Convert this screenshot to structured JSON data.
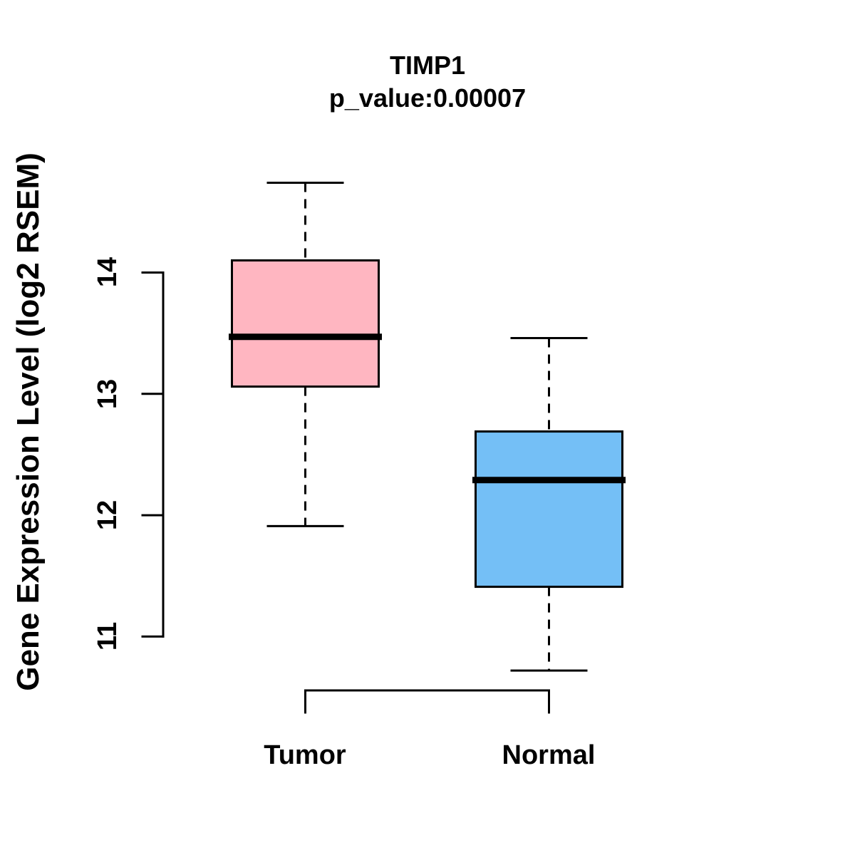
{
  "chart_data": {
    "type": "boxplot",
    "title": "TIMP1",
    "subtitle": "p_value:0.00007",
    "p_value": "0.00007",
    "ylabel": "Gene Expression Level (log2 RSEM)",
    "categories": [
      "Tumor",
      "Normal"
    ],
    "yticks": [
      11,
      12,
      13,
      14
    ],
    "ylim": [
      10.5,
      14.9
    ],
    "grid": false,
    "legend": "none",
    "series": [
      {
        "name": "Tumor",
        "color": "#FFB6C1",
        "whisker_low": 11.91,
        "q1": 13.06,
        "median": 13.47,
        "q3": 14.1,
        "whisker_high": 14.74
      },
      {
        "name": "Normal",
        "color": "#74BFF6",
        "whisker_low": 10.72,
        "q1": 11.41,
        "median": 12.29,
        "q3": 12.69,
        "whisker_high": 13.46
      }
    ],
    "line_color": "#000000",
    "text_color": "#000000",
    "background_color": "#FFFFFF"
  }
}
